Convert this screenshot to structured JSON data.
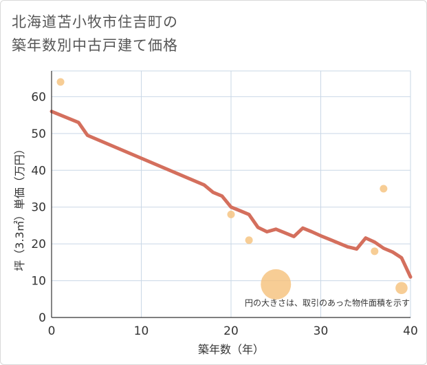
{
  "header": {
    "title_line1": "北海道苫小牧市住吉町の",
    "title_line2": "築年数別中古戸建て価格"
  },
  "chart_data": {
    "type": "scatter",
    "title": "北海道苫小牧市住吉町の築年数別中古戸建て価格",
    "xlabel": "築年数（年）",
    "ylabel": "坪（3.3㎡）単価（万円）",
    "xlim": [
      0,
      40
    ],
    "ylim": [
      0,
      67
    ],
    "xticks": [
      0,
      10,
      20,
      30,
      40
    ],
    "yticks": [
      0,
      10,
      20,
      30,
      40,
      50,
      60
    ],
    "grid": true,
    "note": "円の大きさは、取引のあった物件面積を示す",
    "colors": {
      "line": "#d46f5d",
      "bubble": "#f5c07a",
      "grid": "#c9d7e6",
      "axis": "#333333"
    },
    "scatter": [
      {
        "x": 1,
        "y": 64,
        "size": 1
      },
      {
        "x": 20,
        "y": 28,
        "size": 1
      },
      {
        "x": 22,
        "y": 21,
        "size": 1
      },
      {
        "x": 25,
        "y": 9,
        "size": 4
      },
      {
        "x": 36,
        "y": 18,
        "size": 1
      },
      {
        "x": 37,
        "y": 35,
        "size": 1
      },
      {
        "x": 39,
        "y": 8,
        "size": 1.6
      }
    ],
    "line": {
      "x": [
        0,
        3,
        4,
        17,
        18,
        19,
        20,
        21,
        22,
        23,
        24,
        25,
        26,
        27,
        28,
        29,
        30,
        31,
        32,
        33,
        34,
        35,
        36,
        37,
        38,
        39,
        40
      ],
      "y": [
        56,
        53,
        49.5,
        36,
        34,
        33,
        30,
        29,
        28,
        24.5,
        23.3,
        24,
        23,
        22,
        24.3,
        23.3,
        22.2,
        21.2,
        20.2,
        19.2,
        18.6,
        21.6,
        20.5,
        18.8,
        17.8,
        16.2,
        11
      ]
    }
  }
}
